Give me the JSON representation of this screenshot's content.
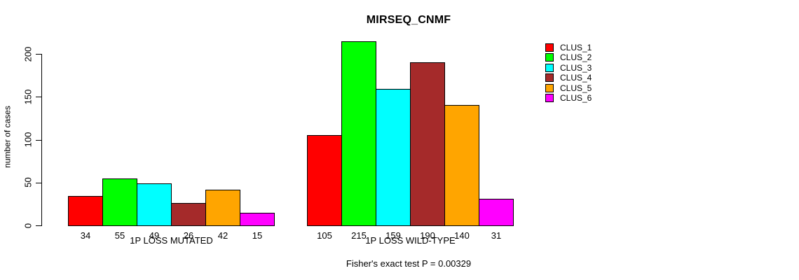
{
  "chart_data": {
    "type": "bar",
    "title": "MIRSEQ_CNMF",
    "ylabel": "number of cases",
    "xlabel": "",
    "footnote": "Fisher's exact test P = 0.00329",
    "categories": [
      "1P LOSS MUTATED",
      "1P LOSS WILD-TYPE"
    ],
    "series": [
      {
        "name": "CLUS_1",
        "color": "#ff0000",
        "values": [
          34,
          105
        ]
      },
      {
        "name": "CLUS_2",
        "color": "#00ff00",
        "values": [
          55,
          215
        ]
      },
      {
        "name": "CLUS_3",
        "color": "#00ffff",
        "values": [
          49,
          159
        ]
      },
      {
        "name": "CLUS_4",
        "color": "#a52a2a",
        "values": [
          26,
          190
        ]
      },
      {
        "name": "CLUS_5",
        "color": "#ffa500",
        "values": [
          42,
          140
        ]
      },
      {
        "name": "CLUS_6",
        "color": "#ff00ff",
        "values": [
          15,
          31
        ]
      }
    ],
    "yticks": [
      0,
      50,
      100,
      150,
      200
    ],
    "ylim": [
      0,
      220
    ],
    "bar_value_labels_shown": true,
    "grid": false,
    "legend_position": "right"
  }
}
